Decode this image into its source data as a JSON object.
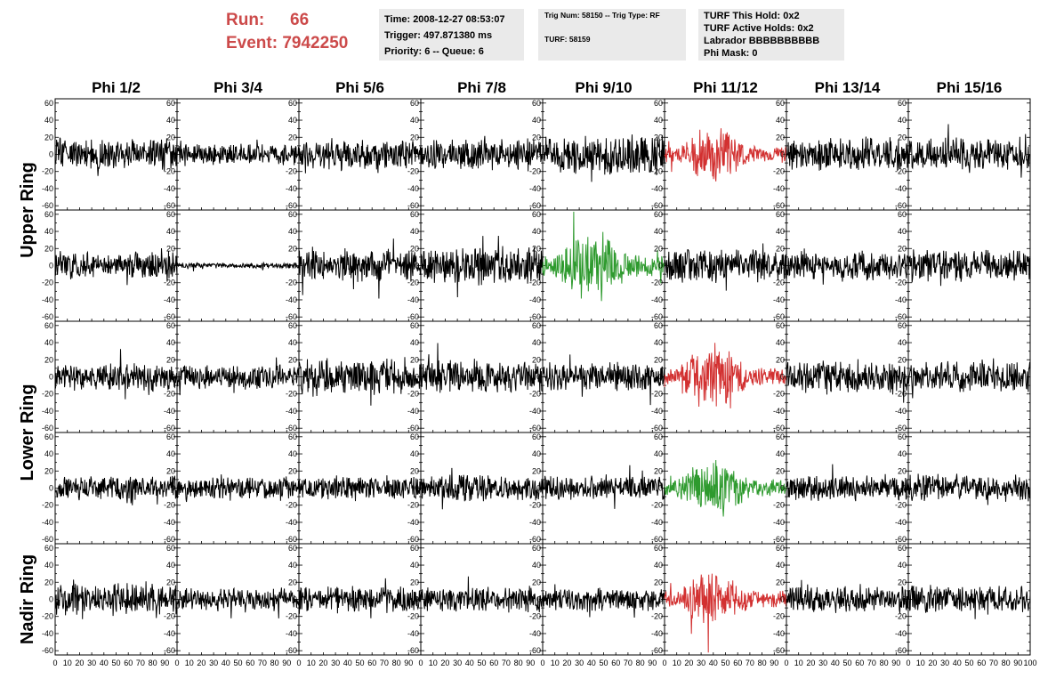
{
  "header": {
    "run_label": "Run:",
    "run_value": "66",
    "event_label": "Event:",
    "event_value": "7942250",
    "time_text": "Time: 2008-12-27 08:53:07",
    "trigger_text": "Trigger: 497.871380 ms",
    "priority_text": "Priority: 6 -- Queue: 6",
    "trig_num_text": "Trig Num: 58150 -- Trig Type: RF",
    "turf_text": "TURF: 58159",
    "turf_hold_text": "TURF This Hold: 0x2",
    "turf_active_text": "TURF Active Holds: 0x2",
    "labrador_text": "Labrador BBBBBBBBBB",
    "phi_mask_text": "Phi Mask: 0"
  },
  "colors": {
    "header_red": "#cc4a4a",
    "trace_default": "#000000",
    "trace_red": "#d23030",
    "trace_green": "#2e9a2e"
  },
  "chart_data": {
    "type": "line",
    "columns": [
      "Phi 1/2",
      "Phi 3/4",
      "Phi 5/6",
      "Phi 7/8",
      "Phi 9/10",
      "Phi 11/12",
      "Phi 13/14",
      "Phi 15/16"
    ],
    "row_labels": [
      "Upper Ring",
      "Lower Ring",
      "Nadir Ring"
    ],
    "x_range": [
      0,
      100
    ],
    "y_range": [
      -65,
      65
    ],
    "x_tick_labels": [
      "0",
      "10",
      "20",
      "30",
      "40",
      "50",
      "60",
      "70",
      "80",
      "90",
      "100"
    ],
    "y_tick_labels": [
      "60",
      "40",
      "20",
      "0",
      "-20",
      "-40",
      "-60"
    ],
    "panels": [
      {
        "row": 0,
        "col": 0,
        "color": "black",
        "amplitude": 14,
        "seed": 11
      },
      {
        "row": 0,
        "col": 1,
        "color": "black",
        "amplitude": 10,
        "seed": 12
      },
      {
        "row": 0,
        "col": 2,
        "color": "black",
        "amplitude": 14,
        "seed": 13
      },
      {
        "row": 0,
        "col": 3,
        "color": "black",
        "amplitude": 14,
        "seed": 14
      },
      {
        "row": 0,
        "col": 4,
        "color": "black",
        "amplitude": 18,
        "seed": 15
      },
      {
        "row": 0,
        "col": 5,
        "color": "red",
        "amplitude": 16,
        "seed": 16,
        "burst": true
      },
      {
        "row": 0,
        "col": 6,
        "color": "black",
        "amplitude": 16,
        "seed": 17
      },
      {
        "row": 0,
        "col": 7,
        "color": "black",
        "amplitude": 15,
        "seed": 18
      },
      {
        "row": 1,
        "col": 0,
        "color": "black",
        "amplitude": 13,
        "seed": 21
      },
      {
        "row": 1,
        "col": 1,
        "color": "black",
        "amplitude": 2.5,
        "seed": 22
      },
      {
        "row": 1,
        "col": 2,
        "color": "black",
        "amplitude": 15,
        "seed": 23
      },
      {
        "row": 1,
        "col": 3,
        "color": "black",
        "amplitude": 17,
        "seed": 24
      },
      {
        "row": 1,
        "col": 4,
        "color": "green",
        "amplitude": 22,
        "seed": 25,
        "burst": true
      },
      {
        "row": 1,
        "col": 5,
        "color": "black",
        "amplitude": 15,
        "seed": 26
      },
      {
        "row": 1,
        "col": 6,
        "color": "black",
        "amplitude": 13,
        "seed": 27
      },
      {
        "row": 1,
        "col": 7,
        "color": "black",
        "amplitude": 15,
        "seed": 28
      },
      {
        "row": 2,
        "col": 0,
        "color": "black",
        "amplitude": 13,
        "seed": 31
      },
      {
        "row": 2,
        "col": 1,
        "color": "black",
        "amplitude": 11,
        "seed": 32
      },
      {
        "row": 2,
        "col": 2,
        "color": "black",
        "amplitude": 17,
        "seed": 33
      },
      {
        "row": 2,
        "col": 3,
        "color": "black",
        "amplitude": 15,
        "seed": 34
      },
      {
        "row": 2,
        "col": 4,
        "color": "black",
        "amplitude": 13,
        "seed": 35
      },
      {
        "row": 2,
        "col": 5,
        "color": "red",
        "amplitude": 18,
        "seed": 36,
        "burst": true
      },
      {
        "row": 2,
        "col": 6,
        "color": "black",
        "amplitude": 15,
        "seed": 37
      },
      {
        "row": 2,
        "col": 7,
        "color": "black",
        "amplitude": 14,
        "seed": 38
      },
      {
        "row": 3,
        "col": 0,
        "color": "black",
        "amplitude": 11,
        "seed": 41
      },
      {
        "row": 3,
        "col": 1,
        "color": "black",
        "amplitude": 10,
        "seed": 42
      },
      {
        "row": 3,
        "col": 2,
        "color": "black",
        "amplitude": 11,
        "seed": 43
      },
      {
        "row": 3,
        "col": 3,
        "color": "black",
        "amplitude": 12,
        "seed": 44
      },
      {
        "row": 3,
        "col": 4,
        "color": "black",
        "amplitude": 11,
        "seed": 45
      },
      {
        "row": 3,
        "col": 5,
        "color": "green",
        "amplitude": 17,
        "seed": 46,
        "burst": true
      },
      {
        "row": 3,
        "col": 6,
        "color": "black",
        "amplitude": 12,
        "seed": 47
      },
      {
        "row": 3,
        "col": 7,
        "color": "black",
        "amplitude": 13,
        "seed": 48
      },
      {
        "row": 4,
        "col": 0,
        "color": "black",
        "amplitude": 15,
        "seed": 51
      },
      {
        "row": 4,
        "col": 1,
        "color": "black",
        "amplitude": 10,
        "seed": 52
      },
      {
        "row": 4,
        "col": 2,
        "color": "black",
        "amplitude": 12,
        "seed": 53
      },
      {
        "row": 4,
        "col": 3,
        "color": "black",
        "amplitude": 12,
        "seed": 54
      },
      {
        "row": 4,
        "col": 4,
        "color": "black",
        "amplitude": 11,
        "seed": 55
      },
      {
        "row": 4,
        "col": 5,
        "color": "red",
        "amplitude": 16,
        "seed": 56,
        "burst": true
      },
      {
        "row": 4,
        "col": 6,
        "color": "black",
        "amplitude": 13,
        "seed": 57
      },
      {
        "row": 4,
        "col": 7,
        "color": "black",
        "amplitude": 12,
        "seed": 58
      }
    ]
  }
}
